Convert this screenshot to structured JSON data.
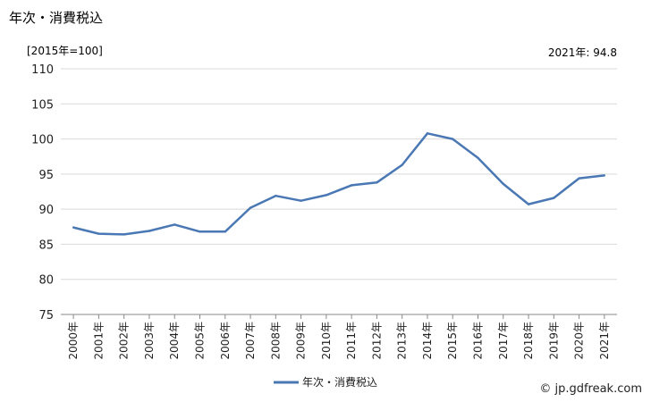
{
  "title": "年次・消費税込",
  "unit_label": "[2015年=100]",
  "latest_label": "2021年: 94.8",
  "credit": "© jp.gdfreak.com",
  "chart_data": {
    "type": "line",
    "x": [
      "2000年",
      "2001年",
      "2002年",
      "2003年",
      "2004年",
      "2005年",
      "2006年",
      "2007年",
      "2008年",
      "2009年",
      "2010年",
      "2011年",
      "2012年",
      "2013年",
      "2014年",
      "2015年",
      "2016年",
      "2017年",
      "2018年",
      "2019年",
      "2020年",
      "2021年"
    ],
    "series": [
      {
        "name": "年次・消費税込",
        "values": [
          87.4,
          86.5,
          86.4,
          86.9,
          87.8,
          86.8,
          86.8,
          90.2,
          91.9,
          91.2,
          92.0,
          93.4,
          93.8,
          96.3,
          100.8,
          100.0,
          97.3,
          93.6,
          90.7,
          91.6,
          94.4,
          94.8
        ]
      }
    ],
    "yticks": [
      75,
      80,
      85,
      90,
      95,
      100,
      105,
      110
    ],
    "ylim": [
      75,
      110
    ],
    "grid": true,
    "legend": "bottom-center",
    "line_color": "#4a78b4"
  }
}
